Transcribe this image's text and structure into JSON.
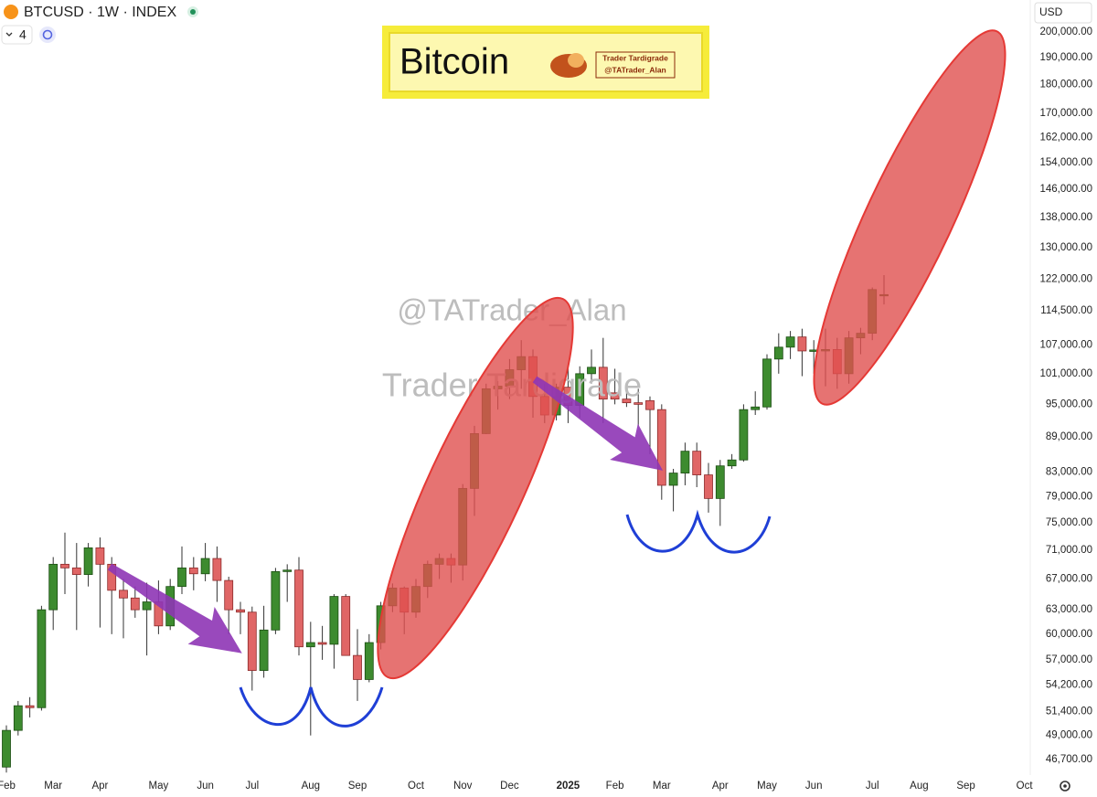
{
  "chart_data": {
    "type": "candlestick",
    "title": "BTCUSD · 1W · INDEX",
    "indicators": "4",
    "currency": "USD",
    "banner": {
      "title": "Bitcoin",
      "logo_name": "Trader Tardigrade",
      "logo_handle": "@TATrader_Alan"
    },
    "watermarks": [
      "@TATrader_Alan",
      "Trader Tardigrade"
    ],
    "log_scale": true,
    "grid": false,
    "up_color": "#3d8b2f",
    "down_color": "#e06666",
    "categories": [
      "Feb",
      null,
      null,
      null,
      "Mar",
      null,
      null,
      null,
      "Apr",
      null,
      null,
      null,
      null,
      "May",
      null,
      null,
      null,
      "Jun",
      null,
      null,
      null,
      "Jul",
      null,
      null,
      null,
      null,
      "Aug",
      null,
      null,
      null,
      "Sep",
      null,
      null,
      null,
      null,
      "Oct",
      null,
      null,
      null,
      "Nov",
      null,
      null,
      null,
      "Dec",
      null,
      null,
      null,
      null,
      "2025",
      null,
      null,
      null,
      "Feb",
      null,
      null,
      null,
      "Mar",
      null,
      null,
      null,
      null,
      "Apr",
      null,
      null,
      null,
      "May",
      null,
      null,
      null,
      "Jun",
      null,
      null,
      null,
      null,
      "Jul",
      null,
      null,
      null,
      "Aug",
      null,
      null,
      null,
      "Sep",
      null,
      null,
      null,
      null,
      "Oct"
    ],
    "open": [
      46000,
      49500,
      52000,
      51800,
      63000,
      69000,
      68500,
      67600,
      71300,
      69000,
      65500,
      64500,
      63000,
      64000,
      61000,
      66000,
      68500,
      67700,
      69800,
      66800,
      63000,
      62700,
      55800,
      60500,
      68000,
      68200,
      58500,
      59000,
      58800,
      64700,
      57500,
      54800,
      59000,
      63500,
      65800,
      62700,
      66000,
      69000,
      69800,
      68900,
      80300,
      89600,
      98000,
      98500,
      101800,
      104500,
      96500,
      93000,
      98300,
      94800,
      101000,
      102300,
      97200,
      96000,
      95300,
      95700,
      94000,
      80800,
      82800,
      86500,
      82500,
      78700,
      84000,
      85000,
      94000,
      94500,
      104000,
      106500,
      108700,
      105600,
      105700,
      106000,
      101000,
      108500,
      109500,
      118000,
      null,
      null,
      null,
      null,
      null,
      null,
      null,
      null,
      null,
      null,
      null,
      null
    ],
    "high": [
      50000,
      52500,
      52900,
      63500,
      70000,
      73500,
      72000,
      72000,
      72800,
      70000,
      67000,
      66000,
      66500,
      66800,
      67000,
      71500,
      70000,
      72000,
      71500,
      67300,
      64000,
      63400,
      63500,
      68500,
      69000,
      70000,
      61500,
      61000,
      65000,
      65000,
      60600,
      60000,
      64000,
      66400,
      66000,
      67000,
      69500,
      70500,
      70500,
      81000,
      91000,
      99000,
      99500,
      104000,
      108000,
      106000,
      99000,
      99000,
      102000,
      102500,
      106000,
      108500,
      102000,
      99000,
      98000,
      96500,
      95000,
      83500,
      88000,
      88000,
      84500,
      85000,
      86000,
      95000,
      97500,
      105000,
      109500,
      110000,
      110500,
      108000,
      110500,
      108500,
      110000,
      110700,
      120000,
      123000,
      null,
      null,
      null,
      null,
      null,
      null,
      null,
      null,
      null,
      null,
      null,
      null
    ],
    "low": [
      45500,
      49000,
      50800,
      51500,
      60500,
      65000,
      60500,
      66000,
      60800,
      60000,
      59500,
      62000,
      57500,
      60000,
      60500,
      65000,
      65500,
      66700,
      64000,
      60000,
      60000,
      53600,
      55000,
      60000,
      64000,
      57500,
      49000,
      57000,
      56000,
      57500,
      52500,
      54500,
      58200,
      62700,
      60000,
      62000,
      64500,
      67000,
      66500,
      66800,
      76000,
      89500,
      94000,
      96000,
      98000,
      92500,
      91500,
      92000,
      91500,
      92500,
      99000,
      91500,
      95000,
      94500,
      91000,
      86000,
      78500,
      76700,
      80800,
      80500,
      76500,
      74500,
      83500,
      84700,
      93000,
      94000,
      101000,
      104000,
      100500,
      101000,
      98500,
      98000,
      99000,
      105000,
      108000,
      116000,
      null,
      null,
      null,
      null,
      null,
      null,
      null,
      null,
      null,
      null,
      null,
      null
    ],
    "close": [
      49500,
      52000,
      51800,
      63000,
      69000,
      68500,
      67600,
      71300,
      69000,
      65500,
      64500,
      63000,
      64000,
      61000,
      66000,
      68500,
      67700,
      69800,
      66800,
      63000,
      62700,
      55800,
      60500,
      68000,
      68200,
      58500,
      59000,
      58800,
      64700,
      57500,
      54800,
      59000,
      63500,
      65800,
      62700,
      66000,
      69000,
      69800,
      68900,
      80300,
      89600,
      98000,
      98500,
      101800,
      104500,
      96500,
      93000,
      98300,
      94800,
      101000,
      102300,
      96000,
      96000,
      95300,
      95000,
      94000,
      80800,
      82800,
      86500,
      82500,
      78700,
      84000,
      85000,
      94000,
      94500,
      104000,
      106500,
      108700,
      105700,
      105900,
      106000,
      101000,
      108500,
      109500,
      119500,
      118300,
      null,
      null,
      null,
      null,
      null,
      null,
      null,
      null,
      null,
      null,
      null,
      null
    ],
    "ylim": [
      45270,
      213200
    ],
    "yticks": [
      {
        "value": 200000,
        "label": "200,000.00"
      },
      {
        "value": 190000,
        "label": "190,000.00"
      },
      {
        "value": 180000,
        "label": "180,000.00"
      },
      {
        "value": 170000,
        "label": "170,000.00"
      },
      {
        "value": 162000,
        "label": "162,000.00"
      },
      {
        "value": 154000,
        "label": "154,000.00"
      },
      {
        "value": 146000,
        "label": "146,000.00"
      },
      {
        "value": 138000,
        "label": "138,000.00"
      },
      {
        "value": 130000,
        "label": "130,000.00"
      },
      {
        "value": 122000,
        "label": "122,000.00"
      },
      {
        "value": 114500,
        "label": "114,500.00"
      },
      {
        "value": 107000,
        "label": "107,000.00"
      },
      {
        "value": 101000,
        "label": "101,000.00"
      },
      {
        "value": 95000,
        "label": "95,000.00"
      },
      {
        "value": 89000,
        "label": "89,000.00"
      },
      {
        "value": 83000,
        "label": "83,000.00"
      },
      {
        "value": 79000,
        "label": "79,000.00"
      },
      {
        "value": 75000,
        "label": "75,000.00"
      },
      {
        "value": 71000,
        "label": "71,000.00"
      },
      {
        "value": 67000,
        "label": "67,000.00"
      },
      {
        "value": 63000,
        "label": "63,000.00"
      },
      {
        "value": 60000,
        "label": "60,000.00"
      },
      {
        "value": 57000,
        "label": "57,000.00"
      },
      {
        "value": 54200,
        "label": "54,200.00"
      },
      {
        "value": 51400,
        "label": "51,400.00"
      },
      {
        "value": 49000,
        "label": "49,000.00"
      },
      {
        "value": 46700,
        "label": "46,700.00"
      }
    ]
  }
}
